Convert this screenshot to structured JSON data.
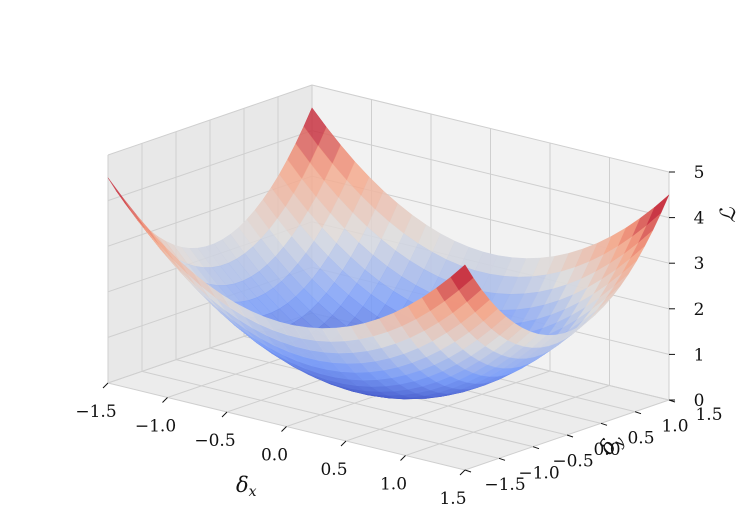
{
  "chart_data": {
    "type": "surface3d",
    "function": "L = dx^2 + dy^2 (approx. visual fit)",
    "colormap": "coolwarm",
    "grid_n": 25,
    "xlim": [
      -1.5,
      1.5
    ],
    "ylim": [
      -1.5,
      1.5
    ],
    "zlim": [
      0,
      5
    ],
    "x_ticks": [
      "−1.5",
      "−1.0",
      "−0.5",
      "0.0",
      "0.5",
      "1.0",
      "1.5"
    ],
    "y_ticks": [
      "−1.5",
      "−1.0",
      "−0.5",
      "0.0",
      "0.5",
      "1.0",
      "1.5"
    ],
    "z_ticks": [
      "0",
      "1",
      "2",
      "3",
      "4",
      "5"
    ],
    "xlabel": "δx",
    "ylabel": "δy",
    "zlabel": "ℒ",
    "grid": true
  }
}
